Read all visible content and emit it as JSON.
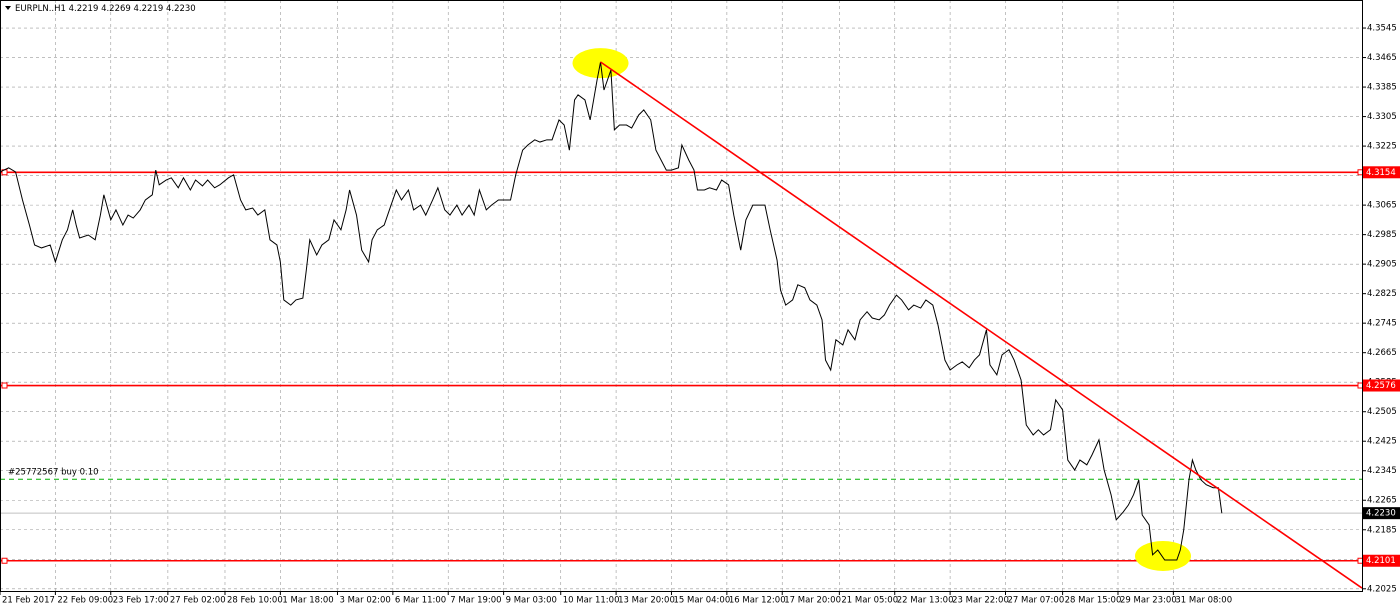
{
  "chart_data": {
    "type": "line",
    "title": "EURPLN..H1  4.2219 4.2269 4.2219 4.2230",
    "color": "#000000",
    "x": [
      0,
      5,
      9,
      13,
      17,
      20,
      24,
      29,
      32,
      36,
      39,
      42,
      44,
      46,
      51,
      55,
      58,
      60,
      64,
      67,
      71,
      74,
      77,
      81,
      84,
      88,
      90,
      92,
      96,
      99,
      103,
      106,
      110,
      113,
      117,
      120,
      124,
      127,
      132,
      135,
      139,
      142,
      146,
      149,
      153,
      156,
      160,
      162,
      164,
      168,
      171,
      175,
      177,
      179,
      183,
      186,
      190,
      193,
      197,
      200,
      202,
      206,
      209,
      213,
      215,
      218,
      222,
      225,
      229,
      232,
      236,
      239,
      243,
      246,
      250,
      253,
      257,
      260,
      264,
      267,
      271,
      274,
      277,
      281,
      284,
      288,
      291,
      295,
      298,
      302,
      305,
      309,
      312,
      316,
      319,
      323,
      326,
      329,
      332,
      334,
      338,
      341,
      345,
      347,
      349,
      353,
      355,
      358,
      362,
      365,
      369,
      372,
      376,
      379,
      382,
      385,
      388,
      392,
      394,
      398,
      401,
      403,
      407,
      410,
      414,
      417,
      421,
      424,
      428,
      431,
      435,
      438,
      442,
      445,
      449,
      451,
      454,
      458,
      461,
      465,
      468,
      472,
      475,
      477,
      480,
      483,
      487,
      490,
      494,
      497,
      501,
      504,
      508,
      511,
      514,
      518,
      521,
      525,
      528,
      532,
      535,
      539,
      542,
      546,
      549,
      553,
      556,
      560,
      563,
      566,
      570,
      572,
      576,
      579,
      583,
      586,
      590,
      593,
      597,
      600,
      603,
      607,
      610,
      614,
      617,
      621,
      624,
      628,
      631,
      635,
      638,
      642,
      645,
      649,
      652,
      655,
      658,
      660,
      664,
      666,
      669,
      673,
      676,
      680,
      682,
      684,
      687,
      689,
      691,
      694,
      697,
      701,
      704,
      706
    ],
    "values": [
      4.3155,
      4.3166,
      4.3155,
      4.3079,
      4.3011,
      4.2957,
      4.2949,
      4.2957,
      4.2911,
      4.2971,
      4.2998,
      4.3052,
      4.3011,
      4.2976,
      4.2984,
      4.2971,
      4.3038,
      4.3093,
      4.3025,
      4.3052,
      4.3011,
      4.3038,
      4.303,
      4.3052,
      4.3079,
      4.3093,
      4.316,
      4.312,
      4.3133,
      4.3139,
      4.3112,
      4.3139,
      4.3106,
      4.3133,
      4.3117,
      4.3133,
      4.3112,
      4.312,
      4.3139,
      4.3147,
      4.3079,
      4.3052,
      4.3057,
      4.3038,
      4.3052,
      4.2971,
      4.2957,
      4.2911,
      4.2808,
      4.2794,
      4.2808,
      4.2813,
      4.2889,
      4.2971,
      4.293,
      4.2957,
      4.2971,
      4.3025,
      4.2998,
      4.3052,
      4.3106,
      4.3038,
      4.2943,
      4.2911,
      4.2971,
      4.2998,
      4.3011,
      4.3052,
      4.3106,
      4.3079,
      4.3106,
      4.3052,
      4.3065,
      4.3038,
      4.3079,
      4.3112,
      4.3052,
      4.3038,
      4.3065,
      4.3038,
      4.3065,
      4.3038,
      4.3106,
      4.3052,
      4.3065,
      4.3079,
      4.3079,
      4.3079,
      4.3147,
      4.3214,
      4.3228,
      4.3242,
      4.3236,
      4.3242,
      4.3242,
      4.3296,
      4.3282,
      4.3214,
      4.335,
      4.3364,
      4.335,
      4.3296,
      4.3404,
      4.3453,
      4.3377,
      4.3431,
      4.3269,
      4.3282,
      4.3282,
      4.3274,
      4.3309,
      4.3323,
      4.3296,
      4.3214,
      4.3187,
      4.316,
      4.316,
      4.3166,
      4.3228,
      4.3187,
      4.316,
      4.3106,
      4.3106,
      4.3112,
      4.3106,
      4.3133,
      4.312,
      4.3038,
      4.2943,
      4.3025,
      4.3065,
      4.3065,
      4.3065,
      4.2998,
      4.2916,
      4.2835,
      4.2794,
      4.2808,
      4.2849,
      4.2841,
      4.2808,
      4.2794,
      4.2754,
      4.2645,
      4.2618,
      4.27,
      4.2686,
      4.2727,
      4.27,
      4.2754,
      4.2776,
      4.2759,
      4.2754,
      4.2767,
      4.2794,
      4.2821,
      4.2808,
      4.2781,
      4.2794,
      4.2786,
      4.2808,
      4.2794,
      4.274,
      4.2645,
      4.2618,
      4.2632,
      4.264,
      4.2624,
      4.2645,
      4.2659,
      4.2727,
      4.2632,
      4.2605,
      4.2659,
      4.2673,
      4.2645,
      4.2591,
      4.2469,
      4.2442,
      4.2456,
      4.2442,
      4.2456,
      4.2537,
      4.251,
      4.2374,
      4.2347,
      4.2374,
      4.2361,
      4.2388,
      4.2429,
      4.2347,
      4.228,
      4.2212,
      4.2233,
      4.2252,
      4.228,
      4.232,
      4.2225,
      4.2198,
      4.2117,
      4.213,
      4.2103,
      4.2103,
      4.2103,
      4.213,
      4.2185,
      4.232,
      4.2374,
      4.2347,
      4.232,
      4.2307,
      4.2299,
      4.2299,
      4.223
    ],
    "xlim": [
      0,
      787
    ],
    "xticks": [
      {
        "value": 0,
        "label": "21 Feb 2017"
      },
      {
        "value": 32,
        "label": "22 Feb 09:00"
      },
      {
        "value": 64,
        "label": "23 Feb 17:00"
      },
      {
        "value": 97,
        "label": "27 Feb 02:00"
      },
      {
        "value": 130,
        "label": "28 Feb 10:00"
      },
      {
        "value": 162,
        "label": "1 Mar 18:00"
      },
      {
        "value": 195,
        "label": "3 Mar 02:00"
      },
      {
        "value": 227,
        "label": "6 Mar 11:00"
      },
      {
        "value": 259,
        "label": "7 Mar 19:00"
      },
      {
        "value": 291,
        "label": "9 Mar 03:00"
      },
      {
        "value": 324,
        "label": "10 Mar 11:00"
      },
      {
        "value": 356,
        "label": "13 Mar 20:00"
      },
      {
        "value": 388,
        "label": "15 Mar 04:00"
      },
      {
        "value": 420,
        "label": "16 Mar 12:00"
      },
      {
        "value": 452,
        "label": "17 Mar 20:00"
      },
      {
        "value": 485,
        "label": "21 Mar 05:00"
      },
      {
        "value": 517,
        "label": "22 Mar 13:00"
      },
      {
        "value": 549,
        "label": "23 Mar 22:00"
      },
      {
        "value": 581,
        "label": "27 Mar 07:00"
      },
      {
        "value": 614,
        "label": "28 Mar 15:00"
      },
      {
        "value": 646,
        "label": "29 Mar 23:00"
      },
      {
        "value": 678,
        "label": "31 Mar 08:00"
      }
    ],
    "ylim": [
      4.2019,
      4.3621
    ],
    "yticks": [
      4.3545,
      4.3465,
      4.3385,
      4.3305,
      4.3225,
      4.3145,
      4.3065,
      4.2985,
      4.2905,
      4.2825,
      4.2745,
      4.2665,
      4.2585,
      4.2505,
      4.2425,
      4.2345,
      4.2265,
      4.2185,
      4.2105,
      4.2025
    ],
    "grid": true,
    "levels": [
      {
        "value": 4.3154,
        "color": "#ff0000"
      },
      {
        "value": 4.2576,
        "color": "#ff0000"
      },
      {
        "value": 4.2101,
        "color": "#ff0000"
      }
    ],
    "current": {
      "value": 4.223,
      "label": "4.2230",
      "color": "#c0c0c0"
    },
    "order": {
      "value": 4.2322,
      "label": "#25772567 buy 0.10",
      "color": "#00b000"
    },
    "trendline": {
      "x": [
        347,
        787
      ],
      "values": [
        4.3453,
        4.2027
      ],
      "color": "#ff0000"
    },
    "highlights": [
      {
        "x": 347,
        "value": 4.345
      },
      {
        "x": 672,
        "value": 4.2114
      }
    ],
    "highlight_color": "#ffff00"
  }
}
